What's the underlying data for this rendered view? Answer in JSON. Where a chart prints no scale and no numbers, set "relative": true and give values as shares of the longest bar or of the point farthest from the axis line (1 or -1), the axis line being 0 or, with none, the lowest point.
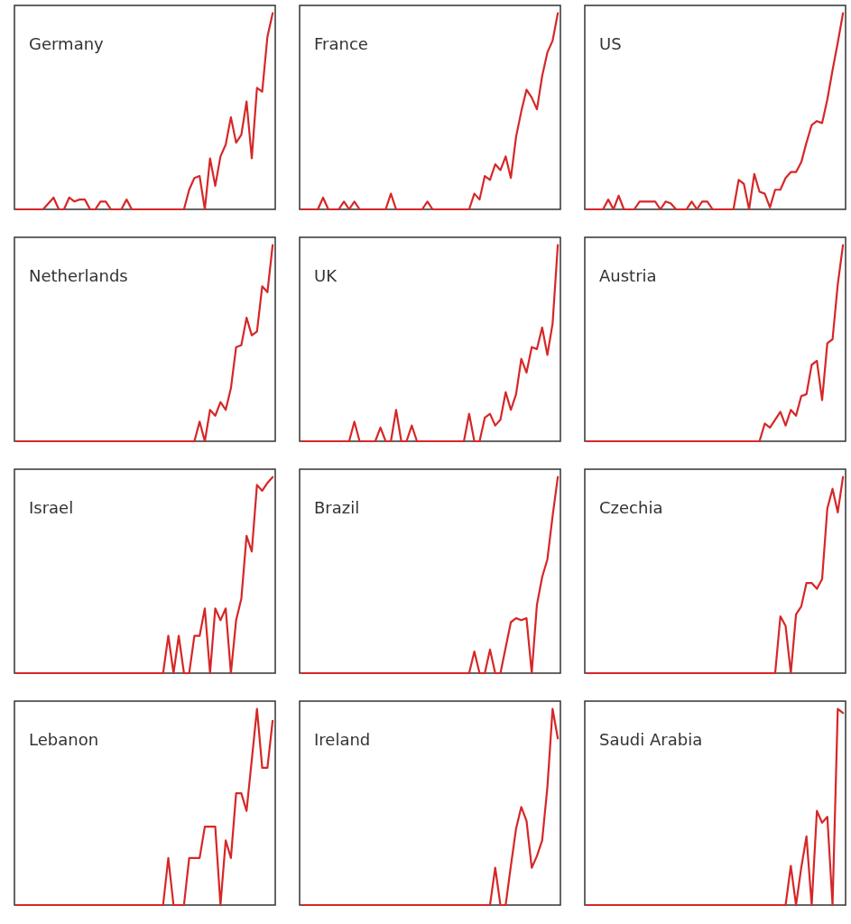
{
  "chart_data": [
    {
      "type": "line",
      "title": "Germany",
      "relative": true,
      "color": "#d62728",
      "categories": [
        null,
        null,
        null,
        null,
        null,
        null,
        null,
        null,
        null,
        null,
        null,
        null,
        null,
        null,
        null,
        null,
        null,
        null,
        null,
        null,
        null,
        null,
        null,
        null,
        null,
        null,
        null,
        null,
        null,
        null,
        null,
        null,
        null,
        null,
        null,
        null,
        null,
        null,
        null,
        null,
        null,
        null,
        null,
        null,
        null,
        null,
        null,
        null,
        null,
        null
      ],
      "values": [
        0,
        0,
        0,
        0,
        0,
        0,
        0.03,
        0.06,
        0,
        0,
        0.06,
        0.04,
        0.05,
        0.05,
        0,
        0,
        0.04,
        0.04,
        0,
        0,
        0,
        0.05,
        0,
        0,
        0,
        0,
        0,
        0,
        0,
        0,
        0,
        0,
        0,
        0.1,
        0.16,
        0.17,
        0,
        0.26,
        0.12,
        0.27,
        0.33,
        0.47,
        0.34,
        0.38,
        0.55,
        0.26,
        0.62,
        0.6,
        0.88,
        1
      ]
    },
    {
      "type": "line",
      "title": "France",
      "relative": true,
      "color": "#d62728",
      "categories": [
        null,
        null,
        null,
        null,
        null,
        null,
        null,
        null,
        null,
        null,
        null,
        null,
        null,
        null,
        null,
        null,
        null,
        null,
        null,
        null,
        null,
        null,
        null,
        null,
        null,
        null,
        null,
        null,
        null,
        null,
        null,
        null,
        null,
        null,
        null,
        null,
        null,
        null,
        null,
        null,
        null,
        null,
        null,
        null,
        null,
        null,
        null,
        null,
        null,
        null
      ],
      "values": [
        0,
        0,
        0,
        0,
        0.06,
        0,
        0,
        0,
        0.04,
        0,
        0.04,
        0,
        0,
        0,
        0,
        0,
        0,
        0.08,
        0,
        0,
        0,
        0,
        0,
        0,
        0.04,
        0,
        0,
        0,
        0,
        0,
        0,
        0,
        0,
        0.08,
        0.05,
        0.17,
        0.15,
        0.23,
        0.2,
        0.27,
        0.16,
        0.37,
        0.5,
        0.61,
        0.57,
        0.51,
        0.68,
        0.8,
        0.86,
        1
      ]
    },
    {
      "type": "line",
      "title": "US",
      "relative": true,
      "color": "#d62728",
      "categories": [
        null,
        null,
        null,
        null,
        null,
        null,
        null,
        null,
        null,
        null,
        null,
        null,
        null,
        null,
        null,
        null,
        null,
        null,
        null,
        null,
        null,
        null,
        null,
        null,
        null,
        null,
        null,
        null,
        null,
        null,
        null,
        null,
        null,
        null,
        null,
        null,
        null,
        null,
        null,
        null,
        null,
        null,
        null,
        null,
        null,
        null,
        null,
        null,
        null,
        null
      ],
      "values": [
        0,
        0,
        0,
        0,
        0.05,
        0,
        0.07,
        0,
        0,
        0,
        0.04,
        0.04,
        0.04,
        0.04,
        0,
        0.04,
        0.03,
        0,
        0,
        0,
        0.04,
        0,
        0.04,
        0.04,
        0,
        0,
        0,
        0,
        0,
        0.15,
        0.13,
        0,
        0.18,
        0.09,
        0.08,
        0.01,
        0.1,
        0.1,
        0.16,
        0.19,
        0.19,
        0.24,
        0.34,
        0.43,
        0.45,
        0.44,
        0.56,
        0.71,
        0.85,
        1
      ]
    },
    {
      "type": "line",
      "title": "Netherlands",
      "relative": true,
      "color": "#d62728",
      "categories": [
        null,
        null,
        null,
        null,
        null,
        null,
        null,
        null,
        null,
        null,
        null,
        null,
        null,
        null,
        null,
        null,
        null,
        null,
        null,
        null,
        null,
        null,
        null,
        null,
        null,
        null,
        null,
        null,
        null,
        null,
        null,
        null,
        null,
        null,
        null,
        null,
        null,
        null,
        null,
        null,
        null,
        null,
        null,
        null,
        null,
        null,
        null,
        null,
        null,
        null
      ],
      "values": [
        0,
        0,
        0,
        0,
        0,
        0,
        0,
        0,
        0,
        0,
        0,
        0,
        0,
        0,
        0,
        0,
        0,
        0,
        0,
        0,
        0,
        0,
        0,
        0,
        0,
        0,
        0,
        0,
        0,
        0,
        0,
        0,
        0,
        0,
        0,
        0.1,
        0,
        0.16,
        0.13,
        0.2,
        0.16,
        0.27,
        0.48,
        0.49,
        0.63,
        0.54,
        0.56,
        0.79,
        0.76,
        1
      ]
    },
    {
      "type": "line",
      "title": "UK",
      "relative": true,
      "color": "#d62728",
      "categories": [
        null,
        null,
        null,
        null,
        null,
        null,
        null,
        null,
        null,
        null,
        null,
        null,
        null,
        null,
        null,
        null,
        null,
        null,
        null,
        null,
        null,
        null,
        null,
        null,
        null,
        null,
        null,
        null,
        null,
        null,
        null,
        null,
        null,
        null,
        null,
        null,
        null,
        null,
        null,
        null,
        null,
        null,
        null,
        null,
        null,
        null,
        null,
        null,
        null,
        null
      ],
      "values": [
        0,
        0,
        0,
        0,
        0,
        0,
        0,
        0,
        0,
        0,
        0.1,
        0,
        0,
        0,
        0,
        0.07,
        0,
        0,
        0.16,
        0,
        0,
        0.08,
        0,
        0,
        0,
        0,
        0,
        0,
        0,
        0,
        0,
        0,
        0.14,
        0,
        0,
        0.12,
        0.14,
        0.08,
        0.11,
        0.25,
        0.16,
        0.24,
        0.42,
        0.35,
        0.48,
        0.47,
        0.58,
        0.44,
        0.6,
        1
      ]
    },
    {
      "type": "line",
      "title": "Austria",
      "relative": true,
      "color": "#d62728",
      "categories": [
        null,
        null,
        null,
        null,
        null,
        null,
        null,
        null,
        null,
        null,
        null,
        null,
        null,
        null,
        null,
        null,
        null,
        null,
        null,
        null,
        null,
        null,
        null,
        null,
        null,
        null,
        null,
        null,
        null,
        null,
        null,
        null,
        null,
        null,
        null,
        null,
        null,
        null,
        null,
        null,
        null,
        null,
        null,
        null,
        null,
        null,
        null,
        null,
        null,
        null
      ],
      "values": [
        0,
        0,
        0,
        0,
        0,
        0,
        0,
        0,
        0,
        0,
        0,
        0,
        0,
        0,
        0,
        0,
        0,
        0,
        0,
        0,
        0,
        0,
        0,
        0,
        0,
        0,
        0,
        0,
        0,
        0,
        0,
        0,
        0,
        0,
        0.09,
        0.07,
        0.11,
        0.15,
        0.08,
        0.16,
        0.13,
        0.23,
        0.24,
        0.39,
        0.41,
        0.21,
        0.5,
        0.52,
        0.8,
        1
      ]
    },
    {
      "type": "line",
      "title": "Israel",
      "relative": true,
      "color": "#d62728",
      "categories": [
        null,
        null,
        null,
        null,
        null,
        null,
        null,
        null,
        null,
        null,
        null,
        null,
        null,
        null,
        null,
        null,
        null,
        null,
        null,
        null,
        null,
        null,
        null,
        null,
        null,
        null,
        null,
        null,
        null,
        null,
        null,
        null,
        null,
        null,
        null,
        null,
        null,
        null,
        null,
        null,
        null,
        null,
        null,
        null,
        null,
        null,
        null,
        null,
        null,
        null
      ],
      "values": [
        0,
        0,
        0,
        0,
        0,
        0,
        0,
        0,
        0,
        0,
        0,
        0,
        0,
        0,
        0,
        0,
        0,
        0,
        0,
        0,
        0,
        0,
        0,
        0,
        0,
        0,
        0,
        0,
        0,
        0.19,
        0,
        0.19,
        0,
        0,
        0.19,
        0.19,
        0.33,
        0,
        0.33,
        0.27,
        0.33,
        0,
        0.27,
        0.38,
        0.7,
        0.62,
        0.96,
        0.93,
        0.97,
        1
      ]
    },
    {
      "type": "line",
      "title": "Brazil",
      "relative": true,
      "color": "#d62728",
      "categories": [
        null,
        null,
        null,
        null,
        null,
        null,
        null,
        null,
        null,
        null,
        null,
        null,
        null,
        null,
        null,
        null,
        null,
        null,
        null,
        null,
        null,
        null,
        null,
        null,
        null,
        null,
        null,
        null,
        null,
        null,
        null,
        null,
        null,
        null,
        null,
        null,
        null,
        null,
        null,
        null,
        null,
        null,
        null,
        null,
        null,
        null,
        null,
        null,
        null,
        null
      ],
      "values": [
        0,
        0,
        0,
        0,
        0,
        0,
        0,
        0,
        0,
        0,
        0,
        0,
        0,
        0,
        0,
        0,
        0,
        0,
        0,
        0,
        0,
        0,
        0,
        0,
        0,
        0,
        0,
        0,
        0,
        0,
        0,
        0,
        0,
        0.11,
        0,
        0,
        0.12,
        0,
        0,
        0.13,
        0.26,
        0.28,
        0.27,
        0.28,
        0,
        0.35,
        0.49,
        0.58,
        0.8,
        1
      ]
    },
    {
      "type": "line",
      "title": "Czechia",
      "relative": true,
      "color": "#d62728",
      "categories": [
        null,
        null,
        null,
        null,
        null,
        null,
        null,
        null,
        null,
        null,
        null,
        null,
        null,
        null,
        null,
        null,
        null,
        null,
        null,
        null,
        null,
        null,
        null,
        null,
        null,
        null,
        null,
        null,
        null,
        null,
        null,
        null,
        null,
        null,
        null,
        null,
        null,
        null,
        null,
        null,
        null,
        null,
        null,
        null,
        null,
        null,
        null,
        null,
        null,
        null
      ],
      "values": [
        0,
        0,
        0,
        0,
        0,
        0,
        0,
        0,
        0,
        0,
        0,
        0,
        0,
        0,
        0,
        0,
        0,
        0,
        0,
        0,
        0,
        0,
        0,
        0,
        0,
        0,
        0,
        0,
        0,
        0,
        0,
        0,
        0,
        0,
        0,
        0,
        0,
        0.29,
        0.24,
        0,
        0.3,
        0.34,
        0.46,
        0.46,
        0.43,
        0.48,
        0.84,
        0.94,
        0.82,
        1
      ]
    },
    {
      "type": "line",
      "title": "Lebanon",
      "relative": true,
      "color": "#d62728",
      "categories": [
        null,
        null,
        null,
        null,
        null,
        null,
        null,
        null,
        null,
        null,
        null,
        null,
        null,
        null,
        null,
        null,
        null,
        null,
        null,
        null,
        null,
        null,
        null,
        null,
        null,
        null,
        null,
        null,
        null,
        null,
        null,
        null,
        null,
        null,
        null,
        null,
        null,
        null,
        null,
        null,
        null,
        null,
        null,
        null,
        null,
        null,
        null,
        null,
        null,
        null
      ],
      "values": [
        0,
        0,
        0,
        0,
        0,
        0,
        0,
        0,
        0,
        0,
        0,
        0,
        0,
        0,
        0,
        0,
        0,
        0,
        0,
        0,
        0,
        0,
        0,
        0,
        0,
        0,
        0,
        0,
        0,
        0.24,
        0,
        0,
        0,
        0.24,
        0.24,
        0.24,
        0.4,
        0.4,
        0.4,
        0,
        0.33,
        0.24,
        0.57,
        0.57,
        0.48,
        0.74,
        1,
        0.7,
        0.7,
        0.94
      ]
    },
    {
      "type": "line",
      "title": "Ireland",
      "relative": true,
      "color": "#d62728",
      "categories": [
        null,
        null,
        null,
        null,
        null,
        null,
        null,
        null,
        null,
        null,
        null,
        null,
        null,
        null,
        null,
        null,
        null,
        null,
        null,
        null,
        null,
        null,
        null,
        null,
        null,
        null,
        null,
        null,
        null,
        null,
        null,
        null,
        null,
        null,
        null,
        null,
        null,
        null,
        null,
        null,
        null,
        null,
        null,
        null,
        null,
        null,
        null,
        null,
        null,
        null
      ],
      "values": [
        0,
        0,
        0,
        0,
        0,
        0,
        0,
        0,
        0,
        0,
        0,
        0,
        0,
        0,
        0,
        0,
        0,
        0,
        0,
        0,
        0,
        0,
        0,
        0,
        0,
        0,
        0,
        0,
        0,
        0,
        0,
        0,
        0,
        0,
        0,
        0,
        0,
        0.19,
        0,
        0,
        0.2,
        0.39,
        0.5,
        0.43,
        0.19,
        0.25,
        0.33,
        0.6,
        1,
        0.85
      ]
    },
    {
      "type": "line",
      "title": "Saudi Arabia",
      "relative": true,
      "color": "#d62728",
      "categories": [
        null,
        null,
        null,
        null,
        null,
        null,
        null,
        null,
        null,
        null,
        null,
        null,
        null,
        null,
        null,
        null,
        null,
        null,
        null,
        null,
        null,
        null,
        null,
        null,
        null,
        null,
        null,
        null,
        null,
        null,
        null,
        null,
        null,
        null,
        null,
        null,
        null,
        null,
        null,
        null,
        null,
        null,
        null,
        null,
        null,
        null,
        null,
        null,
        null,
        null
      ],
      "values": [
        0,
        0,
        0,
        0,
        0,
        0,
        0,
        0,
        0,
        0,
        0,
        0,
        0,
        0,
        0,
        0,
        0,
        0,
        0,
        0,
        0,
        0,
        0,
        0,
        0,
        0,
        0,
        0,
        0,
        0,
        0,
        0,
        0,
        0,
        0,
        0,
        0,
        0,
        0,
        0.2,
        0,
        0.19,
        0.35,
        0,
        0.48,
        0.42,
        0.45,
        0,
        1,
        0.98
      ]
    }
  ]
}
